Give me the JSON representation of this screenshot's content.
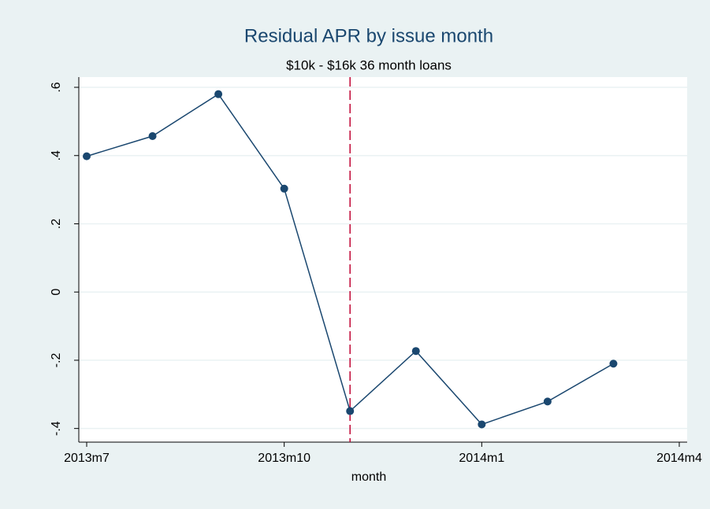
{
  "chart_data": {
    "type": "line",
    "title": "Residual APR by issue month",
    "subtitle": "$10k - $16k 36 month loans",
    "x_label": "month",
    "categories": [
      "2013m7",
      null,
      null,
      "2013m10",
      null,
      null,
      "2014m1",
      null,
      null,
      "2014m4"
    ],
    "series": [
      {
        "name": null,
        "color": "#1a476f",
        "values": [
          0.398,
          0.457,
          0.58,
          0.303,
          -0.349,
          -0.173,
          -0.388,
          -0.321,
          -0.21,
          null
        ]
      }
    ],
    "ylim": [
      -0.44,
      0.63
    ],
    "yticks": [
      {
        "value": -0.4,
        "label": "-.4"
      },
      {
        "value": -0.2,
        "label": "-.2"
      },
      0,
      {
        "value": 0.2,
        "label": ".2"
      },
      {
        "value": 0.4,
        "label": ".4"
      },
      {
        "value": 0.6,
        "label": ".6"
      }
    ],
    "grid": true,
    "reference_line": {
      "category": 4,
      "color": "#c10534"
    }
  }
}
